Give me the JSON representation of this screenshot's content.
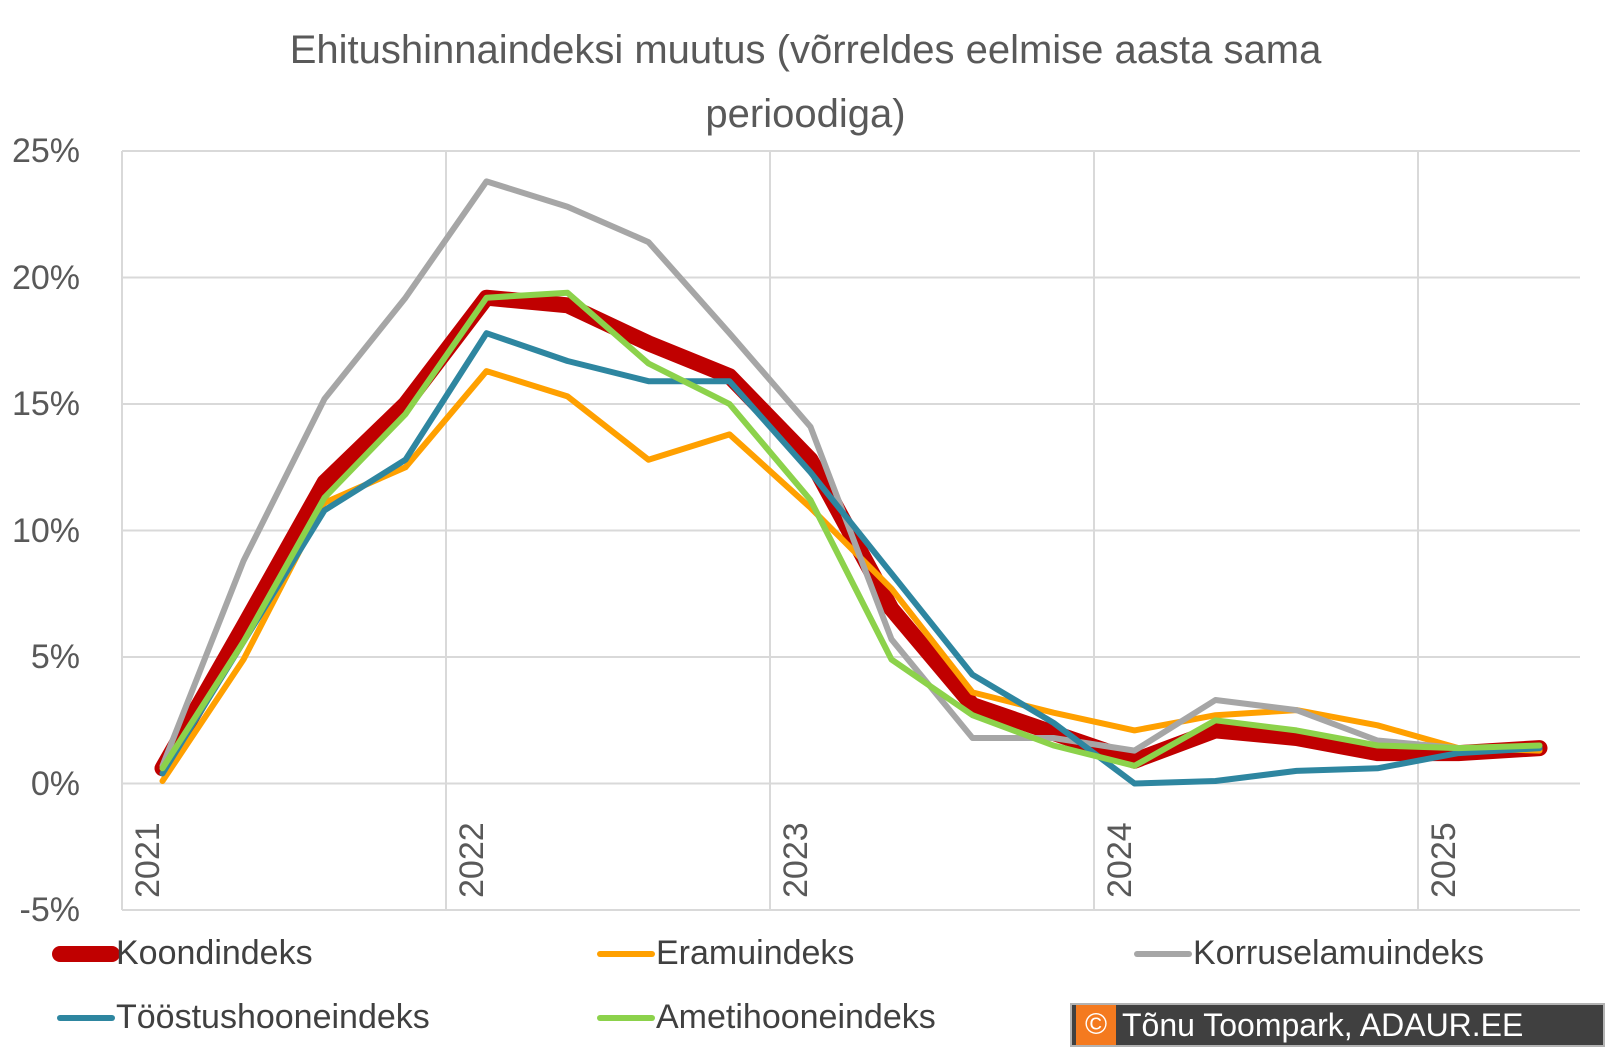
{
  "chart_data": {
    "type": "line",
    "title": "Ehitushinnaindeksi muutus (võrreldes eelmise aasta sama perioodiga)",
    "title_lines": [
      "Ehitushinnaindeksi muutus (võrreldes eelmise aasta sama",
      "perioodiga)"
    ],
    "xlabel": "",
    "ylabel": "",
    "x_tick_labels": [
      "2021",
      "2022",
      "2023",
      "2024",
      "2025"
    ],
    "x_tick_positions": [
      1,
      5,
      9,
      13,
      17
    ],
    "x_range": [
      0.5,
      18.5
    ],
    "ylim": [
      -5,
      25
    ],
    "y_ticks": [
      -5,
      0,
      5,
      10,
      15,
      20,
      25
    ],
    "y_tick_labels": [
      "-5%",
      "0%",
      "5%",
      "10%",
      "15%",
      "20%",
      "25%"
    ],
    "grid": true,
    "legend_position": "bottom",
    "x": [
      1,
      2,
      3,
      4,
      5,
      6,
      7,
      8,
      9,
      10,
      11,
      12,
      13,
      14,
      15,
      16,
      17,
      18
    ],
    "series": [
      {
        "name": "Koondindeks",
        "color": "#c00000",
        "width": 16,
        "values": [
          0.6,
          6.2,
          11.9,
          15.0,
          19.2,
          18.9,
          17.4,
          16.1,
          12.8,
          6.9,
          3.1,
          2.0,
          0.9,
          2.1,
          1.8,
          1.2,
          1.2,
          1.4
        ]
      },
      {
        "name": "Eramuindeks",
        "color": "#ffa000",
        "width": 6,
        "values": [
          0.1,
          4.9,
          11.1,
          12.5,
          16.3,
          15.3,
          12.8,
          13.8,
          10.9,
          7.7,
          3.6,
          2.8,
          2.1,
          2.7,
          2.9,
          2.3,
          1.4,
          1.3
        ]
      },
      {
        "name": "Korruselamuindeks",
        "color": "#a6a6a6",
        "width": 6,
        "values": [
          0.7,
          8.8,
          15.2,
          19.2,
          23.8,
          22.8,
          21.4,
          17.8,
          14.1,
          5.7,
          1.8,
          1.8,
          1.3,
          3.3,
          2.9,
          1.7,
          1.4,
          1.4
        ]
      },
      {
        "name": "Tööstushooneindeks",
        "color": "#2e86a0",
        "width": 6,
        "values": [
          0.4,
          5.6,
          10.8,
          12.8,
          17.8,
          16.7,
          15.9,
          15.9,
          12.3,
          8.3,
          4.3,
          2.4,
          0.0,
          0.1,
          0.5,
          0.6,
          1.2,
          1.4
        ]
      },
      {
        "name": "Ametihooneindeks",
        "color": "#8cd24b",
        "width": 6,
        "values": [
          0.6,
          5.6,
          11.3,
          14.6,
          19.2,
          19.4,
          16.6,
          15.0,
          11.2,
          4.9,
          2.7,
          1.5,
          0.7,
          2.5,
          2.1,
          1.5,
          1.4,
          1.5
        ]
      }
    ]
  },
  "credit": {
    "icon": "copyright-icon",
    "text": "Tõnu Toompark, ADAUR.EE"
  }
}
